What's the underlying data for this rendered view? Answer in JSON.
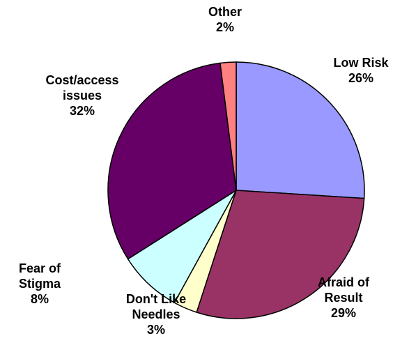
{
  "chart_data": {
    "type": "pie",
    "title": "",
    "slices": [
      {
        "label_lines": [
          "Low Risk"
        ],
        "value_label": "26%",
        "value": 26,
        "color": "#9999FF"
      },
      {
        "label_lines": [
          "Afraid of",
          "Result"
        ],
        "value_label": "29%",
        "value": 29,
        "color": "#993366"
      },
      {
        "label_lines": [
          "Don't Like",
          "Needles"
        ],
        "value_label": "3%",
        "value": 3,
        "color": "#FFFFCC"
      },
      {
        "label_lines": [
          "Fear of",
          "Stigma"
        ],
        "value_label": "8%",
        "value": 8,
        "color": "#CCFFFF"
      },
      {
        "label_lines": [
          "Cost/access",
          "issues"
        ],
        "value_label": "32%",
        "value": 32,
        "color": "#660066"
      },
      {
        "label_lines": [
          "Other"
        ],
        "value_label": "2%",
        "value": 2,
        "color": "#FF8080"
      }
    ],
    "start_angle": "12 o'clock",
    "direction": "clockwise",
    "legend": "none",
    "labels": "outside"
  }
}
